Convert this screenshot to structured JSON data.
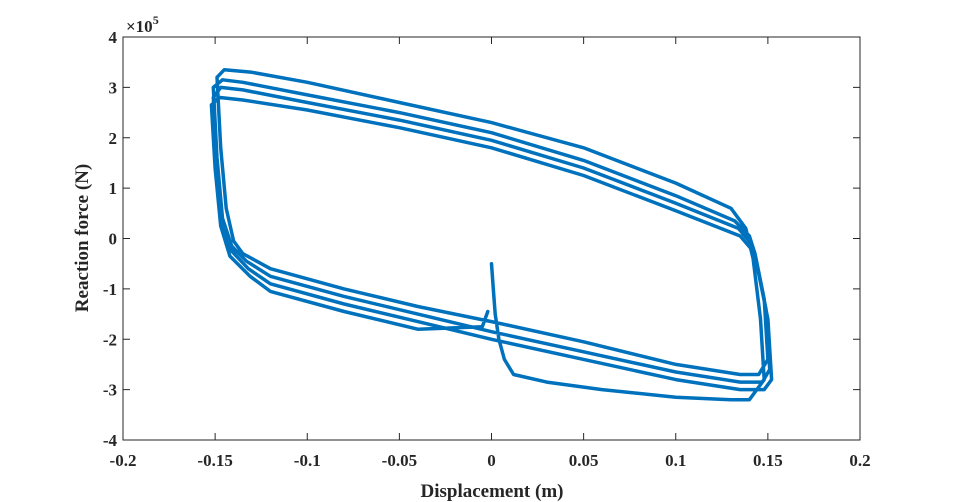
{
  "chart_data": {
    "type": "line",
    "xlabel": "Displacement (m)",
    "ylabel": "Reaction force (N)",
    "xlim": [
      -0.2,
      0.2
    ],
    "ylim": [
      -4,
      4
    ],
    "y_multiplier": {
      "base": "×10",
      "exponent": "5"
    },
    "x_ticks": [
      -0.2,
      -0.15,
      -0.1,
      -0.05,
      0,
      0.05,
      0.1,
      0.15,
      0.2
    ],
    "x_tick_labels": [
      "-0.2",
      "-0.15",
      "-0.1",
      "-0.05",
      "0",
      "0.05",
      "0.1",
      "0.15",
      "0.2"
    ],
    "y_ticks": [
      -4,
      -3,
      -2,
      -1,
      0,
      1,
      2,
      3,
      4
    ],
    "y_tick_labels": [
      "-4",
      "-3",
      "-2",
      "-1",
      "0",
      "1",
      "2",
      "3",
      "4"
    ],
    "grid": false,
    "line_color": "#0072BD",
    "series": [
      {
        "points": [
          [
            0.0,
            -0.5
          ],
          [
            0.001,
            -1.0
          ],
          [
            0.002,
            -1.5
          ],
          [
            0.004,
            -2.0
          ],
          [
            0.007,
            -2.4
          ],
          [
            0.012,
            -2.7
          ],
          [
            0.03,
            -2.85
          ],
          [
            0.06,
            -3.0
          ],
          [
            0.1,
            -3.15
          ],
          [
            0.13,
            -3.2
          ],
          [
            0.14,
            -3.2
          ],
          [
            0.148,
            -2.8
          ],
          [
            0.146,
            -1.6
          ],
          [
            0.142,
            -0.4
          ],
          [
            0.138,
            0.2
          ],
          [
            0.13,
            0.6
          ],
          [
            0.1,
            1.1
          ],
          [
            0.05,
            1.8
          ],
          [
            0.0,
            2.3
          ],
          [
            -0.05,
            2.7
          ],
          [
            -0.1,
            3.1
          ],
          [
            -0.13,
            3.3
          ],
          [
            -0.145,
            3.35
          ],
          [
            -0.149,
            3.2
          ],
          [
            -0.147,
            1.8
          ],
          [
            -0.144,
            0.6
          ],
          [
            -0.14,
            -0.05
          ],
          [
            -0.135,
            -0.3
          ],
          [
            -0.12,
            -0.6
          ],
          [
            -0.08,
            -1.0
          ],
          [
            -0.04,
            -1.35
          ],
          [
            0.0,
            -1.65
          ],
          [
            0.05,
            -2.05
          ],
          [
            0.1,
            -2.5
          ],
          [
            0.135,
            -2.7
          ],
          [
            0.145,
            -2.7
          ],
          [
            0.15,
            -2.4
          ],
          [
            0.148,
            -1.2
          ],
          [
            0.143,
            -0.3
          ],
          [
            0.14,
            0.05
          ],
          [
            0.132,
            0.35
          ],
          [
            0.1,
            0.85
          ],
          [
            0.05,
            1.55
          ],
          [
            0.0,
            2.1
          ],
          [
            -0.05,
            2.5
          ],
          [
            -0.1,
            2.85
          ],
          [
            -0.135,
            3.1
          ],
          [
            -0.146,
            3.15
          ],
          [
            -0.151,
            3.0
          ],
          [
            -0.149,
            1.6
          ],
          [
            -0.146,
            0.4
          ],
          [
            -0.141,
            -0.15
          ],
          [
            -0.133,
            -0.45
          ],
          [
            -0.12,
            -0.75
          ],
          [
            -0.08,
            -1.15
          ],
          [
            -0.04,
            -1.5
          ],
          [
            0.0,
            -1.85
          ],
          [
            0.05,
            -2.25
          ],
          [
            0.1,
            -2.65
          ],
          [
            0.135,
            -2.85
          ],
          [
            0.147,
            -2.85
          ],
          [
            0.151,
            -2.6
          ],
          [
            0.149,
            -1.4
          ],
          [
            0.144,
            -0.5
          ],
          [
            0.141,
            -0.1
          ],
          [
            0.134,
            0.2
          ],
          [
            0.1,
            0.7
          ],
          [
            0.05,
            1.4
          ],
          [
            0.0,
            1.95
          ],
          [
            -0.05,
            2.35
          ],
          [
            -0.1,
            2.7
          ],
          [
            -0.135,
            2.95
          ],
          [
            -0.147,
            3.0
          ],
          [
            -0.151,
            2.8
          ],
          [
            -0.149,
            1.5
          ],
          [
            -0.146,
            0.3
          ],
          [
            -0.141,
            -0.25
          ],
          [
            -0.132,
            -0.6
          ],
          [
            -0.12,
            -0.9
          ],
          [
            -0.08,
            -1.3
          ],
          [
            -0.04,
            -1.65
          ],
          [
            0.0,
            -2.0
          ],
          [
            0.05,
            -2.4
          ],
          [
            0.1,
            -2.8
          ],
          [
            0.135,
            -3.0
          ],
          [
            0.148,
            -3.0
          ],
          [
            0.152,
            -2.8
          ],
          [
            0.15,
            -1.6
          ],
          [
            0.145,
            -0.7
          ],
          [
            0.142,
            -0.25
          ],
          [
            0.135,
            0.05
          ],
          [
            0.1,
            0.55
          ],
          [
            0.05,
            1.25
          ],
          [
            0.0,
            1.8
          ],
          [
            -0.05,
            2.2
          ],
          [
            -0.1,
            2.55
          ],
          [
            -0.135,
            2.75
          ],
          [
            -0.148,
            2.8
          ],
          [
            -0.152,
            2.65
          ],
          [
            -0.15,
            1.4
          ],
          [
            -0.147,
            0.25
          ],
          [
            -0.142,
            -0.35
          ],
          [
            -0.131,
            -0.75
          ],
          [
            -0.12,
            -1.05
          ],
          [
            -0.08,
            -1.45
          ],
          [
            -0.04,
            -1.8
          ],
          [
            -0.005,
            -1.75
          ],
          [
            -0.002,
            -1.45
          ]
        ]
      }
    ]
  }
}
